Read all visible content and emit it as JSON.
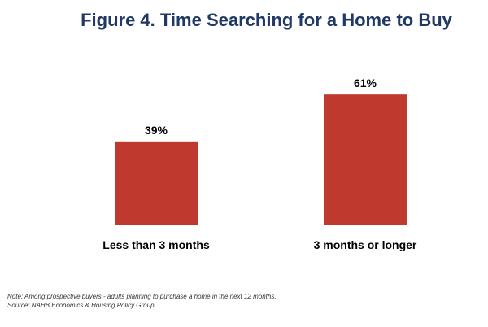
{
  "chart_data": {
    "type": "bar",
    "title": "Figure 4. Time Searching for a Home to Buy",
    "categories": [
      "Less than 3 months",
      "3 months or longer"
    ],
    "values": [
      39,
      61
    ],
    "data_labels": [
      "39%",
      "61%"
    ],
    "xlabel": "",
    "ylabel": "",
    "ylim": [
      0,
      100
    ],
    "grid": false,
    "colors": {
      "bar": "#c0392f",
      "title": "#1f3864",
      "axis": "#808080"
    }
  },
  "notes": {
    "line1": "Note: Among prospective buyers -  adults planning to purchase a home in the next 12 months.",
    "line2": "Source: NAHB Economics & Housing Policy Group."
  }
}
